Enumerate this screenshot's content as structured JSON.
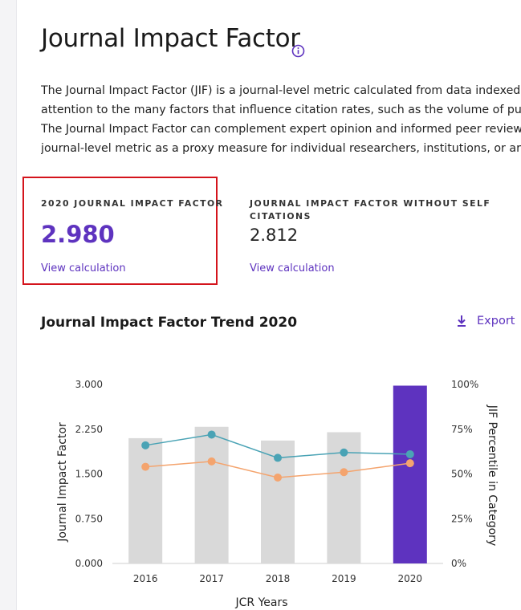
{
  "page": {
    "title": "Journal Impact Factor",
    "intro_lines": [
      "The Journal Impact Factor (JIF) is a journal-level metric calculated from data indexed in t",
      "attention to the many factors that influence citation rates, such as the volume of publica",
      "The Journal Impact Factor can complement expert opinion and informed peer review. In",
      "journal-level metric as a proxy measure for individual researchers, institutions, or article"
    ]
  },
  "metrics": {
    "jif": {
      "label": "2020 JOURNAL IMPACT FACTOR",
      "value": "2.980",
      "link": "View calculation"
    },
    "jif_no_self": {
      "label_line1": "JOURNAL IMPACT FACTOR WITHOUT SELF",
      "label_line2": "CITATIONS",
      "value": "2.812",
      "link": "View calculation"
    }
  },
  "trend": {
    "title": "Journal Impact Factor Trend 2020",
    "export_label": "Export"
  },
  "colors": {
    "accent": "#5e33bf",
    "highlight_border": "#d4141c",
    "bar_gray": "#d9d9d9",
    "line_teal": "#4aa3b5",
    "line_orange": "#f4a46e"
  },
  "chart_data": {
    "type": "bar",
    "categories": [
      "2016",
      "2017",
      "2018",
      "2019",
      "2020"
    ],
    "series": [
      {
        "values": [
          2.1,
          2.29,
          2.06,
          2.2,
          2.98
        ],
        "axis": "left",
        "kind": "bar"
      },
      {
        "values": [
          66,
          72,
          59,
          62,
          61
        ],
        "axis": "right",
        "kind": "line"
      },
      {
        "values": [
          54,
          57,
          48,
          51,
          56
        ],
        "axis": "right",
        "kind": "line"
      }
    ],
    "xlabel": "JCR Years",
    "ylabel": "Journal Impact Factor",
    "y2label": "JIF Percentile in Category",
    "ylim": [
      0,
      3
    ],
    "y2lim": [
      0,
      100
    ],
    "yticks": [
      "0.000",
      "0.750",
      "1.500",
      "2.250",
      "3.000"
    ],
    "y2ticks": [
      "0%",
      "25%",
      "50%",
      "75%",
      "100%"
    ],
    "highlight_category": "2020"
  }
}
